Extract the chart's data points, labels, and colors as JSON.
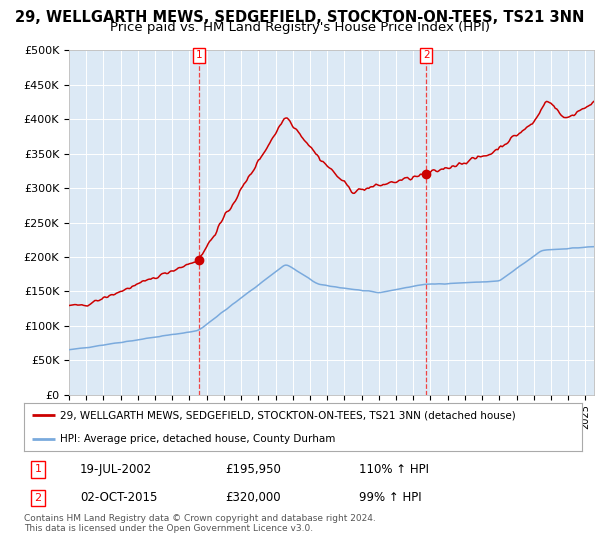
{
  "title": "29, WELLGARTH MEWS, SEDGEFIELD, STOCKTON-ON-TEES, TS21 3NN",
  "subtitle": "Price paid vs. HM Land Registry's House Price Index (HPI)",
  "ylabel_ticks": [
    "£0",
    "£50K",
    "£100K",
    "£150K",
    "£200K",
    "£250K",
    "£300K",
    "£350K",
    "£400K",
    "£450K",
    "£500K"
  ],
  "ytick_values": [
    0,
    50000,
    100000,
    150000,
    200000,
    250000,
    300000,
    350000,
    400000,
    450000,
    500000
  ],
  "ylim": [
    0,
    500000
  ],
  "xlim_start": 1995.0,
  "xlim_end": 2025.5,
  "bg_color": "#dce9f5",
  "grid_color": "#ffffff",
  "red_line_color": "#cc0000",
  "blue_line_color": "#7aaadd",
  "dashed_line_color": "#ee4444",
  "purchase1_x": 2002.54,
  "purchase1_y": 195950,
  "purchase2_x": 2015.75,
  "purchase2_y": 320000,
  "legend_line1": "29, WELLGARTH MEWS, SEDGEFIELD, STOCKTON-ON-TEES, TS21 3NN (detached house)",
  "legend_line2": "HPI: Average price, detached house, County Durham",
  "table_row1_num": "1",
  "table_row1_date": "19-JUL-2002",
  "table_row1_price": "£195,950",
  "table_row1_hpi": "110% ↑ HPI",
  "table_row2_num": "2",
  "table_row2_date": "02-OCT-2015",
  "table_row2_price": "£320,000",
  "table_row2_hpi": "99% ↑ HPI",
  "footnote": "Contains HM Land Registry data © Crown copyright and database right 2024.\nThis data is licensed under the Open Government Licence v3.0.",
  "title_fontsize": 10.5,
  "subtitle_fontsize": 9.5
}
